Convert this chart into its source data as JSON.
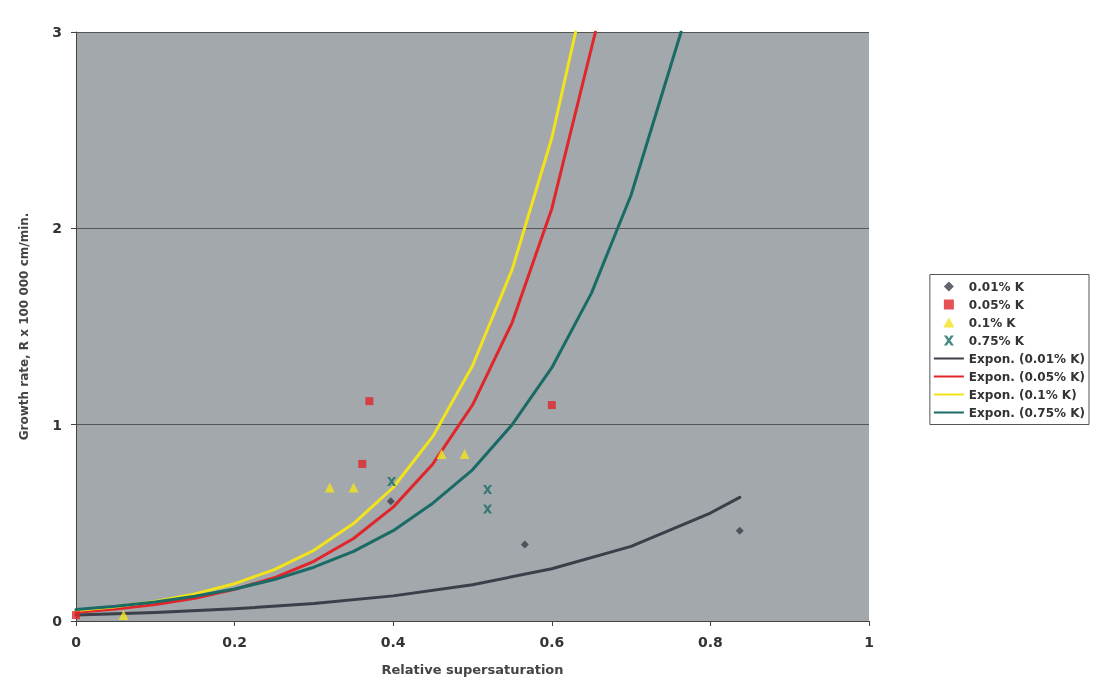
{
  "chart_data": {
    "type": "scatter",
    "xlabel": "Relative supersaturation",
    "ylabel": "Growth rate, R x 100 000 cm/min.",
    "xlim": [
      0,
      1
    ],
    "xticks": [
      0,
      0.2,
      0.4,
      0.6,
      0.8,
      1
    ],
    "ylim": [
      0,
      3
    ],
    "yticks": [
      0,
      1,
      2,
      3
    ],
    "grid": "y",
    "legend": "right",
    "series": [
      {
        "name": "0.01% K",
        "marker": "diamond",
        "color": "#3a3f4a",
        "x": [
          0.397,
          0.566,
          0.837
        ],
        "values": [
          0.61,
          0.39,
          0.46
        ]
      },
      {
        "name": "0.05% K",
        "marker": "square",
        "color": "#e0262a",
        "x": [
          0,
          0.361,
          0.37,
          0.6
        ],
        "values": [
          0.03,
          0.8,
          1.12,
          1.1
        ]
      },
      {
        "name": "0.1% K",
        "marker": "triangle",
        "color": "#f2e31a",
        "x": [
          0.06,
          0.32,
          0.35,
          0.461,
          0.49
        ],
        "values": [
          0.03,
          0.68,
          0.68,
          0.85,
          0.85
        ]
      },
      {
        "name": "0.75% K",
        "marker": "cross",
        "color": "#1a6b66",
        "x": [
          0.398,
          0.519,
          0.519
        ],
        "values": [
          0.71,
          0.67,
          0.57
        ]
      },
      {
        "name": "Expon. (0.01% K)",
        "type": "line",
        "marker": "none",
        "color": "#3a3f4a",
        "x": [
          0,
          0.1,
          0.2,
          0.3,
          0.4,
          0.5,
          0.6,
          0.7,
          0.8,
          0.837
        ],
        "values": [
          0.03,
          0.043,
          0.062,
          0.089,
          0.128,
          0.185,
          0.266,
          0.38,
          0.55,
          0.63
        ]
      },
      {
        "name": "Expon. (0.05% K)",
        "type": "line",
        "marker": "none",
        "color": "#e0262a",
        "x": [
          0,
          0.05,
          0.1,
          0.15,
          0.2,
          0.25,
          0.3,
          0.35,
          0.4,
          0.45,
          0.5,
          0.55,
          0.6,
          0.655
        ],
        "values": [
          0.044,
          0.061,
          0.084,
          0.116,
          0.161,
          0.22,
          0.304,
          0.42,
          0.58,
          0.8,
          1.1,
          1.52,
          2.1,
          3.0
        ]
      },
      {
        "name": "Expon. (0.1% K)",
        "type": "line",
        "marker": "none",
        "color": "#f2e31a",
        "x": [
          0,
          0.05,
          0.1,
          0.15,
          0.2,
          0.25,
          0.3,
          0.35,
          0.4,
          0.45,
          0.5,
          0.55,
          0.6,
          0.63
        ],
        "values": [
          0.053,
          0.073,
          0.1,
          0.138,
          0.19,
          0.262,
          0.36,
          0.496,
          0.68,
          0.94,
          1.3,
          1.79,
          2.46,
          3.0
        ]
      },
      {
        "name": "Expon. (0.75% K)",
        "type": "line",
        "marker": "none",
        "color": "#1a6b66",
        "x": [
          0,
          0.05,
          0.1,
          0.15,
          0.2,
          0.25,
          0.3,
          0.35,
          0.4,
          0.45,
          0.5,
          0.55,
          0.6,
          0.65,
          0.7,
          0.763
        ],
        "values": [
          0.058,
          0.075,
          0.097,
          0.126,
          0.163,
          0.211,
          0.274,
          0.355,
          0.46,
          0.6,
          0.77,
          1.0,
          1.29,
          1.67,
          2.17,
          3.0
        ]
      }
    ]
  }
}
